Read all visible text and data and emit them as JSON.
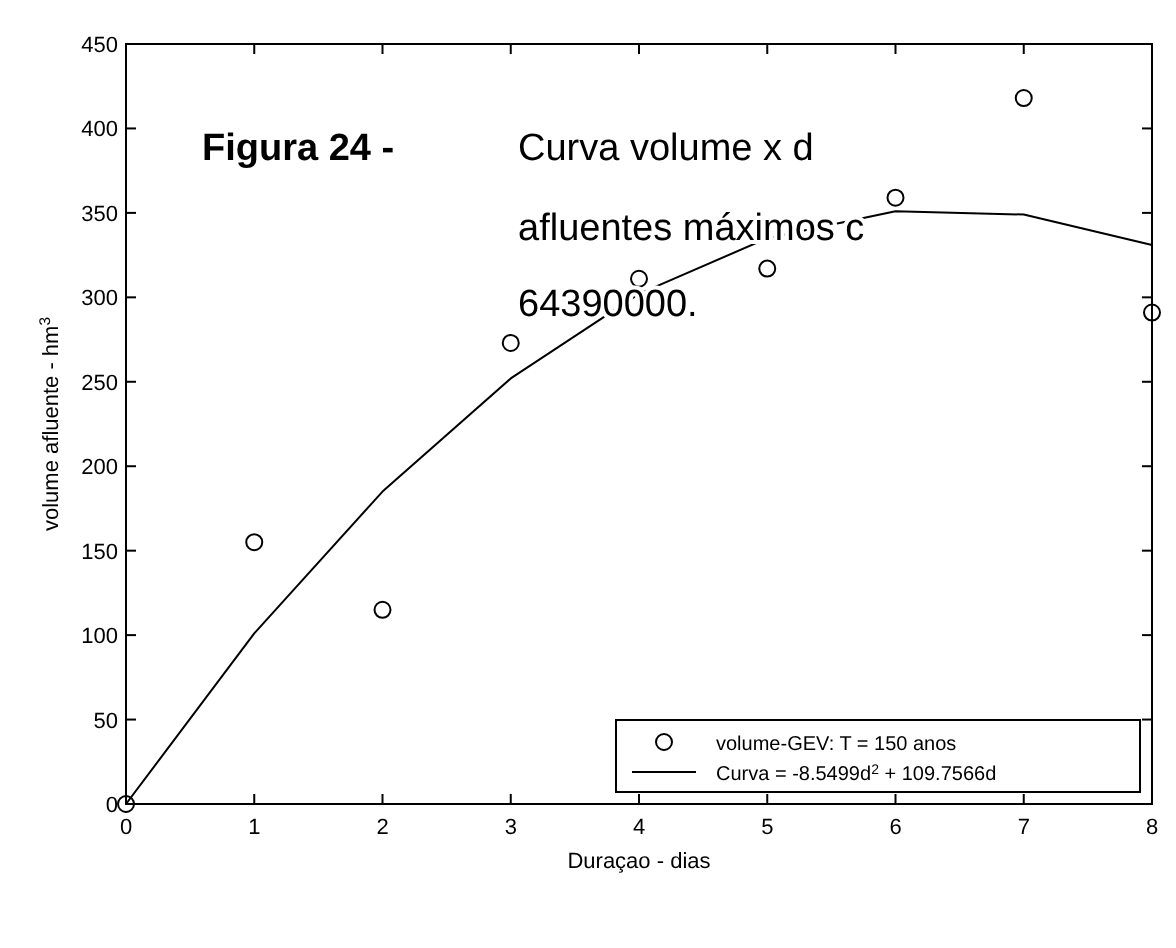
{
  "chart_data": {
    "type": "scatter",
    "xlabel": "Duraçao - dias",
    "ylabel": "volume afluente - hm$^{3}$",
    "annotations": [
      "Figura 24 -",
      "Curva volume x d",
      "afluentes máximos c",
      "64390000."
    ],
    "xlim": [
      0,
      8
    ],
    "xticks": [
      0,
      1,
      2,
      3,
      4,
      5,
      6,
      7,
      8
    ],
    "ylim": [
      0,
      450
    ],
    "yticks": [
      0,
      50,
      100,
      150,
      200,
      250,
      300,
      350,
      400,
      450
    ],
    "legend": "bottom right",
    "grid": false,
    "series": [
      {
        "name": "volume-GEV: T = 150 anos",
        "color": "#000000",
        "marker": "circle",
        "x": [
          0,
          1,
          2,
          3,
          4,
          5,
          6,
          7,
          8
        ],
        "values": [
          0,
          155,
          115,
          273,
          311,
          317,
          359,
          418,
          291
        ]
      },
      {
        "type": "line",
        "name": "Curva = -8.5499d$^{2}$ + 109.7566d",
        "color": "#000000",
        "marker": "none",
        "line_style": "solid",
        "x": [
          0,
          1,
          2,
          3,
          4,
          5,
          6,
          7,
          8
        ],
        "values": [
          0,
          101,
          185,
          252,
          302,
          335,
          351,
          349,
          331
        ]
      }
    ]
  }
}
